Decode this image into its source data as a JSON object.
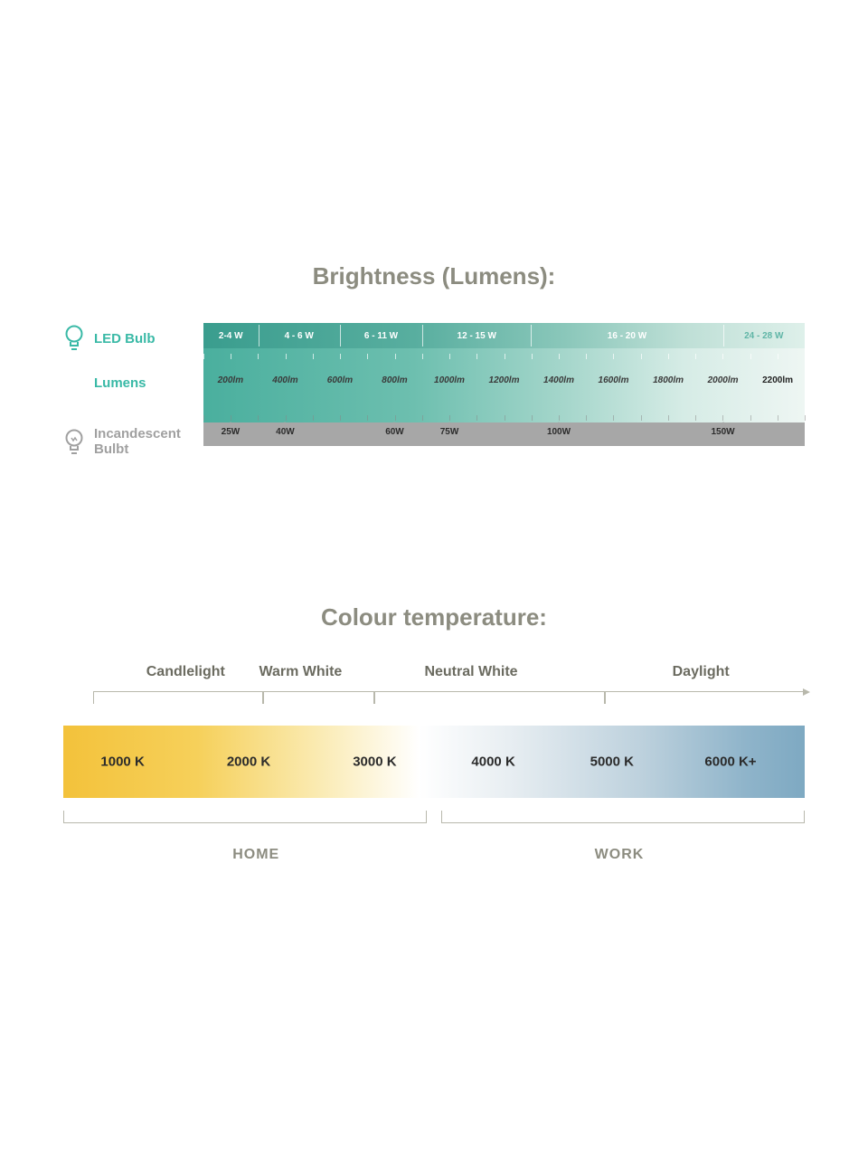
{
  "brightness": {
    "title": "Brightness (Lumens):",
    "led_label": "LED Bulb",
    "lumens_label": "Lumens",
    "inc_label": "Incandescent Bulbt",
    "colors": {
      "teal": "#39b9a6",
      "gray": "#a7a7a7",
      "label_gray": "#8c8c80"
    },
    "led_ranges": [
      {
        "label": "2-4 W",
        "from": 0,
        "to": 9.1
      },
      {
        "label": "4 - 6 W",
        "from": 9.1,
        "to": 22.7
      },
      {
        "label": "6 - 11 W",
        "from": 22.7,
        "to": 36.4
      },
      {
        "label": "12 - 15 W",
        "from": 36.4,
        "to": 54.5
      },
      {
        "label": "16 - 20 W",
        "from": 54.5,
        "to": 86.4
      },
      {
        "label": "24 - 28 W",
        "from": 86.4,
        "to": 100
      }
    ],
    "lumens": [
      {
        "label": "200lm",
        "pct": 4.5
      },
      {
        "label": "400lm",
        "pct": 13.6
      },
      {
        "label": "600lm",
        "pct": 22.7
      },
      {
        "label": "800lm",
        "pct": 31.8
      },
      {
        "label": "1000lm",
        "pct": 40.9
      },
      {
        "label": "1200lm",
        "pct": 50.0
      },
      {
        "label": "1400lm",
        "pct": 59.1
      },
      {
        "label": "1600lm",
        "pct": 68.2
      },
      {
        "label": "1800lm",
        "pct": 77.3
      },
      {
        "label": "2000lm",
        "pct": 86.4
      },
      {
        "label": "2200lm",
        "pct": 95.5,
        "plain": true
      }
    ],
    "incandescent": [
      {
        "label": "25W",
        "pct": 4.5
      },
      {
        "label": "40W",
        "pct": 13.6
      },
      {
        "label": "60W",
        "pct": 31.8
      },
      {
        "label": "75W",
        "pct": 40.9
      },
      {
        "label": "100W",
        "pct": 59.1
      },
      {
        "label": "150W",
        "pct": 86.4
      }
    ]
  },
  "colour": {
    "title": "Colour temperature:",
    "categories": [
      {
        "label": "Candlelight",
        "pct": 16.5,
        "from": 4,
        "to": 27
      },
      {
        "label": "Warm White",
        "pct": 32,
        "from": 27,
        "to": 42
      },
      {
        "label": "Neutral White",
        "pct": 55,
        "from": 42,
        "to": 73
      },
      {
        "label": "Daylight",
        "pct": 86,
        "from": 73,
        "to": 100,
        "arrow": true
      }
    ],
    "temps": [
      {
        "label": "1000 K",
        "pct": 8
      },
      {
        "label": "2000 K",
        "pct": 25
      },
      {
        "label": "3000 K",
        "pct": 42
      },
      {
        "label": "4000 K",
        "pct": 58
      },
      {
        "label": "5000 K",
        "pct": 74
      },
      {
        "label": "6000 K+",
        "pct": 90
      }
    ],
    "zones": [
      {
        "label": "HOME",
        "pct": 26,
        "from": 0,
        "to": 49
      },
      {
        "label": "WORK",
        "pct": 75,
        "from": 51,
        "to": 100
      }
    ],
    "gradient_stops": [
      {
        "c": "#f3c23b",
        "p": 0
      },
      {
        "c": "#f6d05a",
        "p": 18
      },
      {
        "c": "#faeab0",
        "p": 34
      },
      {
        "c": "#ffffff",
        "p": 48
      },
      {
        "c": "#e8eef2",
        "p": 60
      },
      {
        "c": "#bdd1dd",
        "p": 78
      },
      {
        "c": "#8fb4ca",
        "p": 92
      },
      {
        "c": "#7ea9c2",
        "p": 100
      }
    ]
  }
}
